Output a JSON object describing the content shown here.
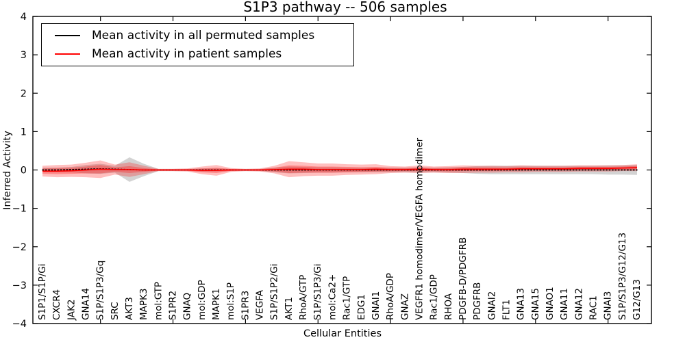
{
  "title": "S1P3 pathway -- 506 samples",
  "legend": {
    "entries": [
      {
        "label": "Mean activity in all permuted samples",
        "color": "#000000"
      },
      {
        "label": "Mean activity in patient samples",
        "color": "#ff0000"
      }
    ]
  },
  "chart_data": {
    "type": "line",
    "title": "S1P3 pathway -- 506 samples",
    "xlabel": "Cellular Entities",
    "ylabel": "Inferred Activity",
    "ylim": [
      -4,
      4
    ],
    "yticks": [
      4,
      3,
      2,
      1,
      0,
      -1,
      -2,
      -3,
      -4
    ],
    "x_major_tick_indices": [
      4,
      9,
      14,
      19,
      24,
      29,
      34,
      39
    ],
    "grid": false,
    "legend_position": "upper left",
    "categories": [
      "S1P1/S1P/Gi",
      "CXCR4",
      "JAK2",
      "GNA14",
      "S1P/S1P3/Gq",
      "SRC",
      "AKT3",
      "MAPK3",
      "mol:GTP",
      "S1PR2",
      "GNAQ",
      "mol:GDP",
      "MAPK1",
      "mol:S1P",
      "S1PR3",
      "VEGFA",
      "S1P/S1P2/Gi",
      "AKT1",
      "RhoA/GTP",
      "S1P/S1P3/Gi",
      "mol:Ca2+",
      "Rac1/GTP",
      "EDG1",
      "GNAI1",
      "RhoA/GDP",
      "GNAZ",
      "VEGFR1 homodimer/VEGFA homodimer",
      "Rac1/GDP",
      "RHOA",
      "PDGFB-D/PDGFRB",
      "PDGFRB",
      "GNAI2",
      "FLT1",
      "GNA13",
      "GNA15",
      "GNAO1",
      "GNA11",
      "GNA12",
      "RAC1",
      "GNAI3",
      "S1P/S1P3/G12/G13",
      "G12/G13"
    ],
    "series": [
      {
        "name": "Mean activity in all permuted samples",
        "color": "#000000",
        "style": "dotted",
        "values": [
          0,
          0,
          0.01,
          0.02,
          0.03,
          0.02,
          0.01,
          0,
          0,
          0,
          0,
          0,
          0,
          0,
          0,
          0,
          0,
          0,
          0,
          0,
          0,
          0,
          0,
          0,
          0,
          0,
          0,
          0,
          0,
          0,
          0,
          0,
          0,
          0,
          0,
          0,
          0,
          0,
          0,
          0,
          0,
          0
        ]
      },
      {
        "name": "Mean activity in patient samples",
        "color": "#ff0000",
        "style": "solid",
        "values": [
          -0.03,
          -0.03,
          -0.02,
          0,
          0.02,
          0.01,
          0.01,
          0,
          0,
          0,
          0,
          -0.01,
          -0.01,
          0,
          0,
          0,
          0.01,
          0.02,
          0.02,
          0.01,
          0.01,
          0.01,
          0.01,
          0.02,
          0.01,
          0.01,
          0.02,
          0.01,
          0.01,
          0.02,
          0.02,
          0.02,
          0.02,
          0.03,
          0.03,
          0.03,
          0.03,
          0.04,
          0.04,
          0.04,
          0.05,
          0.06
        ]
      }
    ],
    "bands": [
      {
        "name": "permuted-std",
        "center_series": 0,
        "color": "#808080",
        "opacity": 0.35,
        "half_widths": [
          0.06,
          0.06,
          0.07,
          0.11,
          0.13,
          0.09,
          0.32,
          0.16,
          0.03,
          0.03,
          0.03,
          0.04,
          0.04,
          0.03,
          0.03,
          0.03,
          0.06,
          0.09,
          0.08,
          0.07,
          0.07,
          0.06,
          0.06,
          0.06,
          0.06,
          0.06,
          0.07,
          0.06,
          0.07,
          0.08,
          0.1,
          0.11,
          0.11,
          0.11,
          0.11,
          0.11,
          0.11,
          0.11,
          0.11,
          0.12,
          0.12,
          0.13
        ]
      },
      {
        "name": "patient-std-outer",
        "center_series": 1,
        "color": "#ff0000",
        "opacity": 0.25,
        "half_widths": [
          0.14,
          0.16,
          0.16,
          0.19,
          0.23,
          0.13,
          0.19,
          0.11,
          0.03,
          0.03,
          0.04,
          0.1,
          0.14,
          0.05,
          0.03,
          0.04,
          0.1,
          0.21,
          0.18,
          0.16,
          0.16,
          0.14,
          0.13,
          0.13,
          0.09,
          0.08,
          0.1,
          0.08,
          0.09,
          0.1,
          0.09,
          0.09,
          0.08,
          0.09,
          0.08,
          0.08,
          0.08,
          0.08,
          0.08,
          0.08,
          0.08,
          0.09
        ]
      },
      {
        "name": "patient-std-inner",
        "center_series": 1,
        "color": "#ff0000",
        "opacity": 0.28,
        "half_widths": [
          0.07,
          0.08,
          0.08,
          0.09,
          0.11,
          0.06,
          0.09,
          0.05,
          0.015,
          0.015,
          0.02,
          0.05,
          0.07,
          0.025,
          0.015,
          0.02,
          0.05,
          0.1,
          0.09,
          0.08,
          0.08,
          0.07,
          0.06,
          0.06,
          0.045,
          0.04,
          0.05,
          0.04,
          0.045,
          0.05,
          0.045,
          0.045,
          0.04,
          0.045,
          0.04,
          0.04,
          0.04,
          0.04,
          0.04,
          0.04,
          0.04,
          0.045
        ]
      }
    ]
  }
}
